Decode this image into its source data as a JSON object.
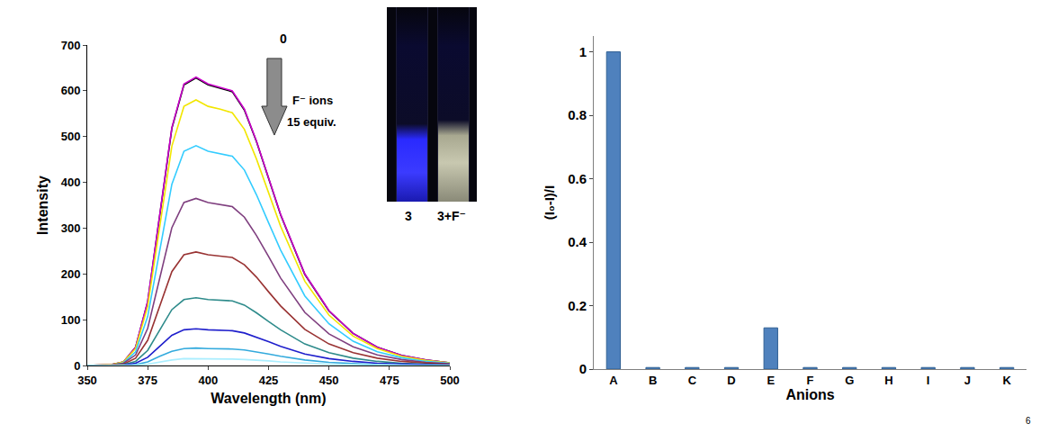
{
  "chart_data": [
    {
      "type": "line",
      "x_label": "Wavelength (nm)",
      "y_label": "Intensity",
      "x": [
        350,
        360,
        365,
        370,
        375,
        380,
        385,
        390,
        395,
        400,
        405,
        410,
        415,
        420,
        425,
        430,
        440,
        450,
        460,
        470,
        480,
        490,
        500
      ],
      "xlim": [
        350,
        500
      ],
      "xticks": [
        350,
        375,
        400,
        425,
        450,
        475,
        500
      ],
      "ylim": [
        0,
        700
      ],
      "yticks": [
        0,
        100,
        200,
        300,
        400,
        500,
        600,
        700
      ],
      "grid": false,
      "series": [
        {
          "color": "#000000",
          "values": [
            0,
            2,
            8,
            40,
            139,
            329,
            518,
            613,
            628,
            613,
            606,
            598,
            558,
            489,
            409,
            329,
            199,
            119,
            70,
            40,
            22,
            12,
            6
          ]
        },
        {
          "color": "#cc00cc",
          "values": [
            0,
            2,
            8,
            40,
            140,
            330,
            520,
            615,
            630,
            615,
            608,
            600,
            560,
            490,
            410,
            330,
            200,
            120,
            70,
            40,
            22,
            12,
            6
          ]
        },
        {
          "color": "#f2e600",
          "values": [
            0,
            2,
            8,
            37,
            129,
            304,
            479,
            566,
            580,
            566,
            560,
            552,
            516,
            451,
            378,
            304,
            184,
            110,
            64,
            37,
            20,
            11,
            6
          ]
        },
        {
          "color": "#33ccff",
          "values": [
            0,
            1,
            6,
            30,
            107,
            252,
            396,
            468,
            480,
            468,
            463,
            457,
            427,
            373,
            312,
            252,
            152,
            91,
            53,
            30,
            17,
            9,
            5
          ]
        },
        {
          "color": "#7f3f7f",
          "values": [
            0,
            1,
            5,
            23,
            81,
            191,
            301,
            356,
            365,
            356,
            352,
            347,
            324,
            284,
            238,
            191,
            116,
            69,
            41,
            23,
            13,
            7,
            4
          ]
        },
        {
          "color": "#993333",
          "values": [
            0,
            1,
            3,
            16,
            55,
            130,
            205,
            242,
            248,
            242,
            239,
            236,
            220,
            193,
            161,
            130,
            79,
            47,
            28,
            16,
            9,
            5,
            2
          ]
        },
        {
          "color": "#2e8b8b",
          "values": [
            0,
            0,
            2,
            9,
            33,
            78,
            122,
            144,
            148,
            144,
            143,
            141,
            132,
            115,
            96,
            78,
            47,
            28,
            16,
            9,
            5,
            3,
            1
          ]
        },
        {
          "color": "#1f1fcc",
          "values": [
            0,
            0,
            1,
            5,
            18,
            42,
            66,
            78,
            80,
            78,
            77,
            76,
            71,
            62,
            52,
            42,
            25,
            15,
            9,
            5,
            3,
            2,
            1
          ]
        },
        {
          "color": "#33aadd",
          "values": [
            0,
            0,
            0,
            2,
            8,
            20,
            31,
            37,
            38,
            37,
            37,
            36,
            34,
            30,
            25,
            20,
            12,
            7,
            4,
            2,
            1,
            1,
            0
          ]
        },
        {
          "color": "#aaeeff",
          "values": [
            0,
            0,
            0,
            1,
            3,
            8,
            12,
            15,
            15,
            15,
            14,
            14,
            13,
            12,
            10,
            8,
            5,
            3,
            2,
            1,
            1,
            0,
            0
          ]
        }
      ],
      "annotations": [
        "0",
        "F⁻ ions",
        "15 equiv."
      ],
      "inset": {
        "labels": [
          "3",
          "3+F⁻"
        ]
      }
    },
    {
      "type": "bar",
      "x_label": "Anions",
      "y_label": "(I₀-I)/I",
      "categories": [
        "A",
        "B",
        "C",
        "D",
        "E",
        "F",
        "G",
        "H",
        "I",
        "J",
        "K"
      ],
      "values": [
        1.0,
        0.005,
        0.005,
        0.005,
        0.13,
        0.005,
        0.005,
        0.005,
        0.005,
        0.005,
        0.005
      ],
      "color": "#4f81bd",
      "ylim": [
        0,
        1.05
      ],
      "yticks": [
        0,
        0.2,
        0.4,
        0.6,
        0.8,
        1
      ],
      "grid": false
    }
  ],
  "page_number": "6"
}
